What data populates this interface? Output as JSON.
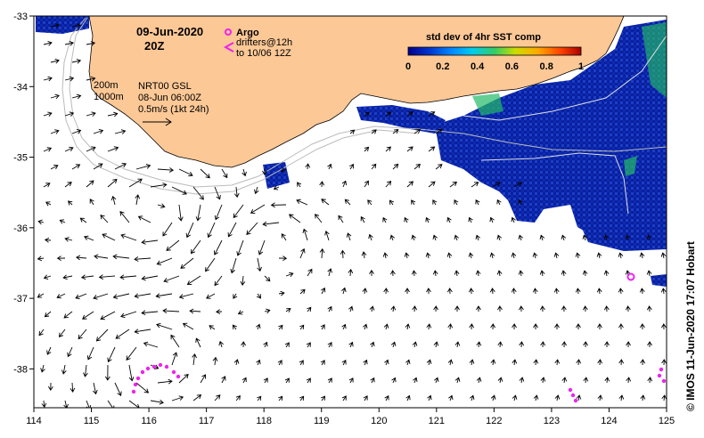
{
  "title_date": "09-Jun-2020",
  "title_time": "20Z",
  "legend": {
    "argo_label": "Argo",
    "drifters_line1": "drifters@12h",
    "drifters_line2": "to 10/06 12Z",
    "argo_color": "#ee22ee",
    "drifter_color": "#ee22ee"
  },
  "isobaths": {
    "label_200": "200m",
    "label_1000": "1000m"
  },
  "current_info": {
    "line1": "NRT00 GSL",
    "line2": "08-Jun 06:00Z",
    "line3": "0.5m/s (1kt 24h)"
  },
  "colorbar": {
    "title": "std dev of 4hr SST comp",
    "ticks": [
      "0",
      "0.2",
      "0.4",
      "0.6",
      "0.8",
      "1"
    ],
    "colors": [
      "#00008b",
      "#0033cc",
      "#0088ff",
      "#00ccee",
      "#33cc66",
      "#ccdd00",
      "#ffaa00",
      "#ff4400",
      "#aa0000"
    ]
  },
  "axes": {
    "x_ticks": [
      "114",
      "115",
      "116",
      "117",
      "118",
      "119",
      "120",
      "121",
      "122",
      "123",
      "124",
      "125"
    ],
    "y_ticks": [
      "-33",
      "-34",
      "-35",
      "-36",
      "-37",
      "-38"
    ],
    "lon_range": [
      114,
      125
    ],
    "lat_range": [
      -38.55,
      -33
    ]
  },
  "credit": "© IMOS 11-Jun-2020 17:07 Hobart",
  "colors": {
    "land": "#fcc896",
    "ocean": "#ffffff",
    "sst_dark": "#0a1f9e",
    "sst_mid": "#2255dd",
    "sst_green": "#22bb66",
    "contour": "#bbbbbb",
    "arrow": "#000000"
  }
}
